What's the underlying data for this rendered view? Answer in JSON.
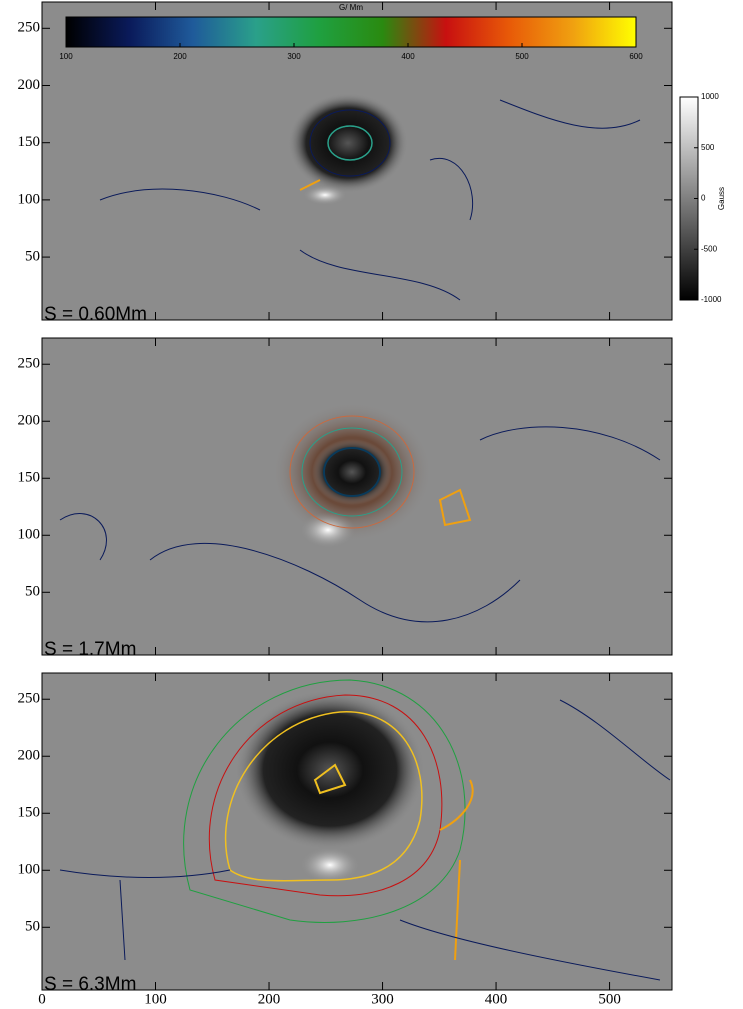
{
  "chart_data": [
    {
      "type": "image",
      "label": "S = 0.60Mm",
      "ylim": [
        -5,
        273
      ],
      "yticks": [
        50,
        100,
        150,
        200,
        250
      ]
    },
    {
      "type": "image",
      "label": "S = 1.7Mm",
      "ylim": [
        -5,
        273
      ],
      "yticks": [
        50,
        100,
        150,
        200,
        250
      ]
    },
    {
      "type": "image",
      "label": "S = 6.3Mm",
      "xlim": [
        0,
        555
      ],
      "xticks": [
        0,
        100,
        200,
        300,
        400,
        500
      ],
      "ylim": [
        -5,
        273
      ],
      "yticks": [
        50,
        100,
        150,
        200,
        250
      ]
    },
    {
      "type": "colorbar",
      "orientation": "horizontal",
      "title": "G/ Mm",
      "lim": [
        100,
        600
      ],
      "ticks": [
        100,
        200,
        300,
        400,
        500,
        600
      ],
      "colors": [
        "#000000",
        "#0a1a5a",
        "#1f5a9a",
        "#2aa08a",
        "#1fa040",
        "#2a8a10",
        "#c81010",
        "#e85a08",
        "#f0a010",
        "#ffff00"
      ]
    },
    {
      "type": "colorbar",
      "orientation": "vertical",
      "title": "Gauss",
      "lim": [
        -1000,
        1000
      ],
      "ticks": [
        -1000,
        -500,
        0,
        500,
        1000
      ],
      "colors": [
        "#000000",
        "#ffffff"
      ]
    }
  ]
}
